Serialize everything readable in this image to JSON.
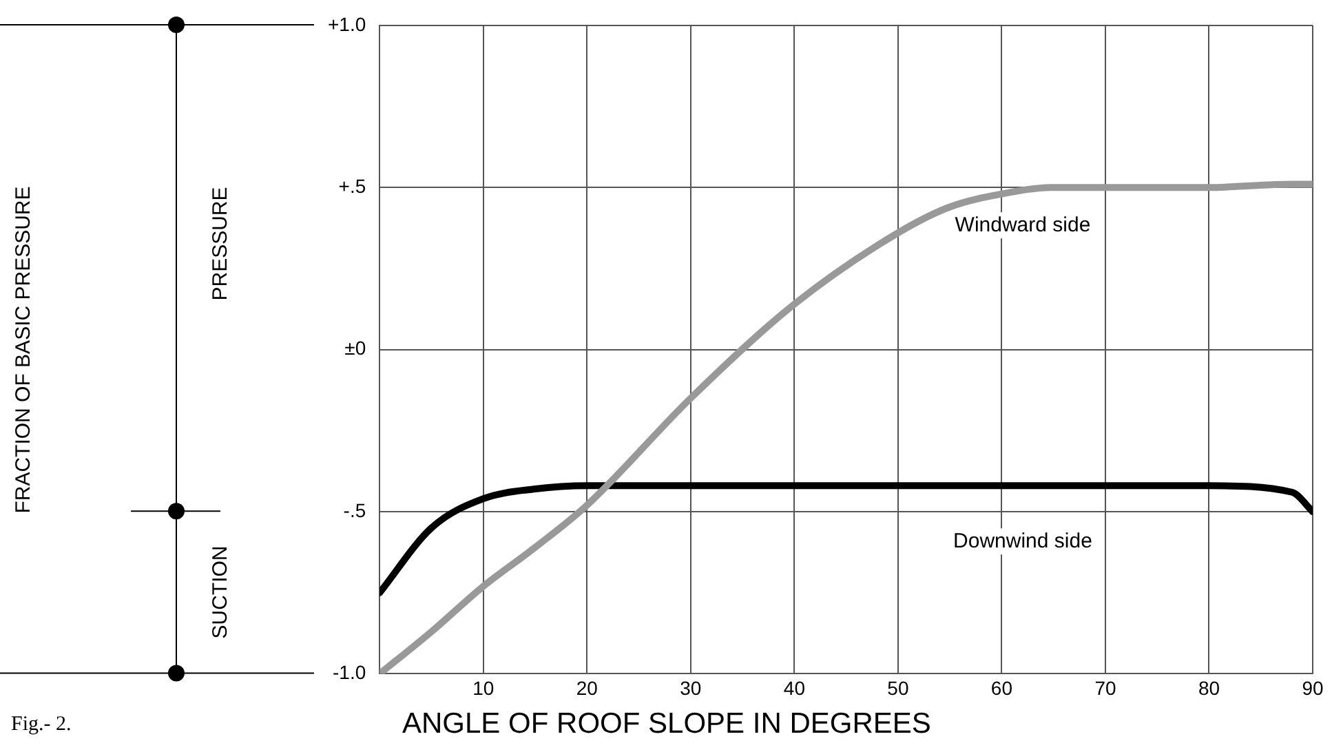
{
  "chart_data": {
    "type": "line",
    "xlabel": "ANGLE OF ROOF SLOPE IN DEGREES",
    "annotations": [
      "FRACTION OF BASIC PRESSURE",
      "PRESSURE",
      "SUCTION",
      "Fig.- 2."
    ],
    "x": [
      0,
      5,
      10,
      15,
      20,
      30,
      40,
      50,
      55,
      60,
      65,
      70,
      80,
      88,
      90
    ],
    "series": [
      {
        "name": "Windward side",
        "color": "#999999",
        "values": [
          -1,
          -0.87,
          -0.73,
          -0.61,
          -0.48,
          -0.15,
          0.14,
          0.36,
          0.44,
          0.48,
          0.5,
          0.5,
          0.5,
          0.51,
          0.51
        ]
      },
      {
        "name": "Downwind side",
        "color": "#000000",
        "values": [
          -0.75,
          -0.55,
          -0.46,
          -0.43,
          -0.42,
          -0.42,
          -0.42,
          -0.42,
          -0.42,
          -0.42,
          -0.42,
          -0.42,
          -0.42,
          -0.44,
          -0.5
        ]
      }
    ],
    "xlim": [
      0,
      90
    ],
    "xticks": [
      {
        "value": 0,
        "label": null
      },
      10,
      20,
      30,
      40,
      50,
      60,
      70,
      80,
      90
    ],
    "ylim": [
      -1,
      1
    ],
    "yticks": [
      {
        "value": -1,
        "label": "-1.0"
      },
      {
        "value": -0.5,
        "label": "-.5"
      },
      {
        "value": 0,
        "label": "±0"
      },
      {
        "value": 0.5,
        "label": "+.5"
      },
      {
        "value": 1,
        "label": "+1.0"
      }
    ],
    "grid": true,
    "legend": false,
    "marker": "none",
    "line_style": "solid"
  }
}
